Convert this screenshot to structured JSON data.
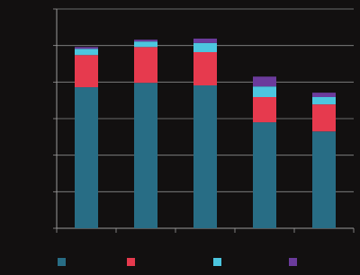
{
  "chart_data": {
    "type": "stacked_bar",
    "categories": [
      null,
      null,
      null,
      null,
      null
    ],
    "series": [
      {
        "color": "#286d85",
        "values": [
          3.86,
          3.98,
          3.91,
          2.9,
          2.65
        ]
      },
      {
        "color": "#e63a4e",
        "values": [
          0.88,
          0.98,
          0.91,
          0.69,
          0.74
        ]
      },
      {
        "color": "#4cc6df",
        "values": [
          0.17,
          0.15,
          0.25,
          0.29,
          0.2
        ]
      },
      {
        "color": "#6b3b9c",
        "values": [
          0.05,
          0.05,
          0.12,
          0.27,
          0.12
        ]
      }
    ],
    "ylim": [
      0,
      6
    ],
    "yticks": [
      0,
      1,
      2,
      3,
      4,
      5,
      6
    ],
    "grid": true
  }
}
